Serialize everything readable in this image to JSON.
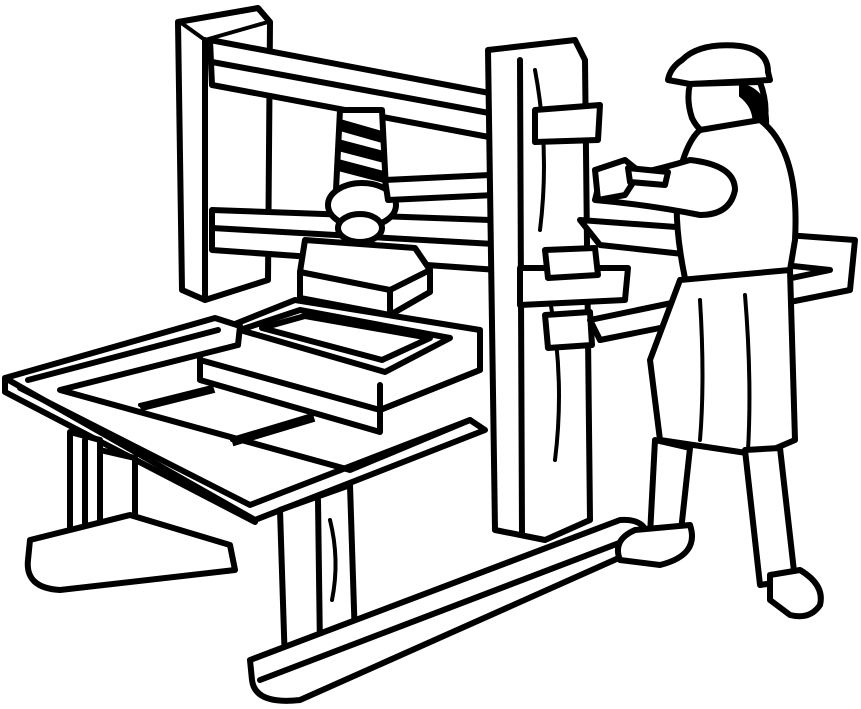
{
  "illustration": {
    "subject": "printing-press-with-printer",
    "ink_color": "#000000",
    "background_color": "#ffffff"
  }
}
